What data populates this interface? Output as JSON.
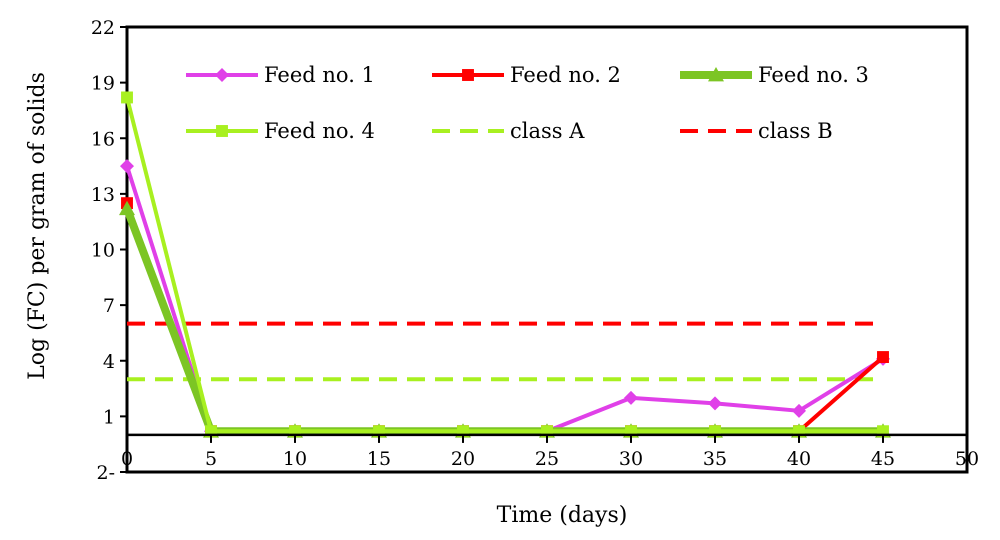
{
  "chart_data": {
    "type": "line",
    "xlabel": "Time (days)",
    "ylabel": "Log (FC) per gram of solids",
    "xlim": [
      0,
      50
    ],
    "ylim": [
      -2,
      22
    ],
    "x_ticks": [
      "0",
      "5",
      "10",
      "15",
      "20",
      "25",
      "30",
      "35",
      "40",
      "45",
      "50"
    ],
    "y_ticks": [
      {
        "value": 22,
        "label": "22"
      },
      {
        "value": 19,
        "label": "19"
      },
      {
        "value": 16,
        "label": "16"
      },
      {
        "value": 13,
        "label": "13"
      },
      {
        "value": 10,
        "label": "10"
      },
      {
        "value": 7,
        "label": "7"
      },
      {
        "value": 4,
        "label": "4"
      },
      {
        "value": 1,
        "label": "1"
      },
      {
        "value": -2,
        "label": "2-"
      }
    ],
    "grid": false,
    "legend_position": "top",
    "series": [
      {
        "name": "Feed no. 1",
        "color": "#E040E8",
        "marker": "diamond",
        "width": 4,
        "x": [
          0,
          5,
          10,
          15,
          20,
          25,
          30,
          35,
          40,
          45
        ],
        "y": [
          14.5,
          0.2,
          0.2,
          0.2,
          0.2,
          0.2,
          2.0,
          1.7,
          1.3,
          4.1
        ]
      },
      {
        "name": "Feed no. 2",
        "color": "#FF0000",
        "marker": "square",
        "width": 4,
        "x": [
          0,
          5,
          10,
          15,
          20,
          25,
          30,
          35,
          40,
          45
        ],
        "y": [
          12.5,
          0.2,
          0.2,
          0.2,
          0.2,
          0.2,
          0.2,
          0.2,
          0.2,
          4.2
        ]
      },
      {
        "name": "Feed no. 3",
        "color": "#7CC524",
        "marker": "triangle",
        "width": 8,
        "x": [
          0,
          5,
          10,
          15,
          20,
          25,
          30,
          35,
          40,
          45
        ],
        "y": [
          12.2,
          0.2,
          0.2,
          0.2,
          0.2,
          0.2,
          0.2,
          0.2,
          0.2,
          0.2
        ]
      },
      {
        "name": "Feed no. 4",
        "color": "#A8F020",
        "marker": "square",
        "width": 4,
        "x": [
          0,
          5,
          10,
          15,
          20,
          25,
          30,
          35,
          40,
          45
        ],
        "y": [
          18.2,
          0.2,
          0.2,
          0.2,
          0.2,
          0.2,
          0.2,
          0.2,
          0.2,
          0.2
        ]
      },
      {
        "name": "class A",
        "color": "#A8F020",
        "dashed": true,
        "width": 4,
        "x": [
          0,
          45
        ],
        "y": [
          3,
          3
        ]
      },
      {
        "name": "class B",
        "color": "#FF0000",
        "dashed": true,
        "width": 4,
        "x": [
          0,
          45
        ],
        "y": [
          6,
          6
        ]
      }
    ]
  }
}
